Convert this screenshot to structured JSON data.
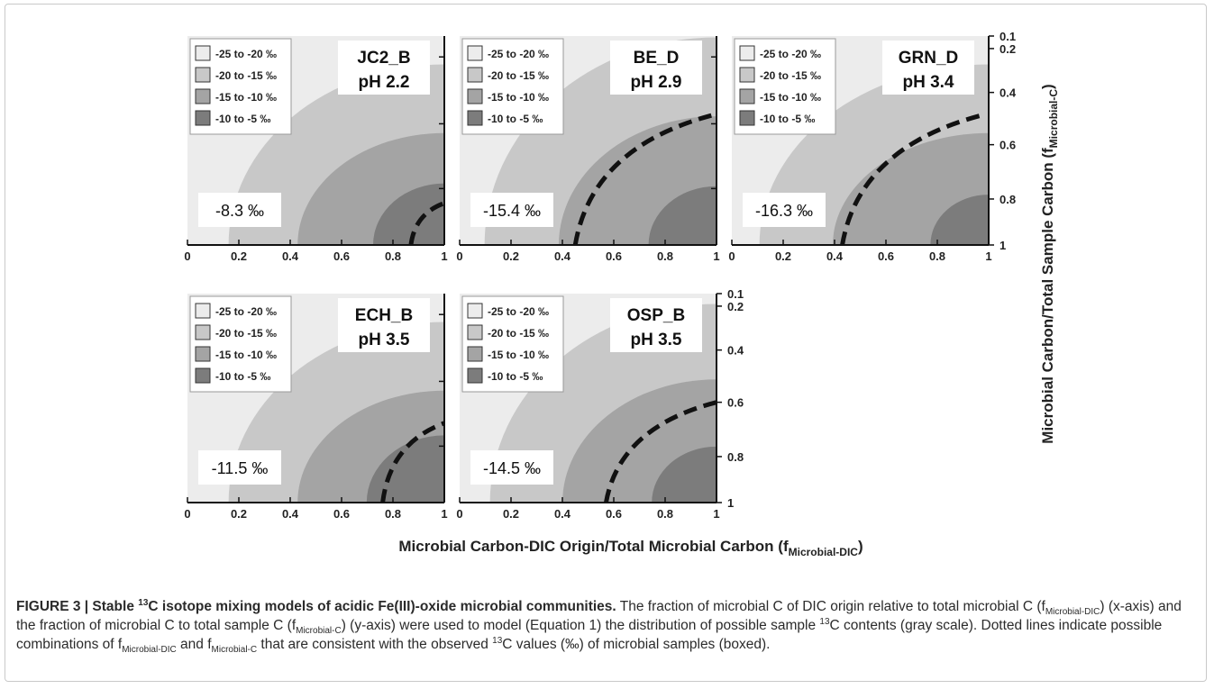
{
  "chart_data": {
    "type": "heatmap",
    "description_layout": "five contour panels sharing a right y-axis",
    "xlabel": {
      "main": "Microbial Carbon-DIC Origin/Total Microbial Carbon (f",
      "sub": "Microbial-DIC",
      "close": ")"
    },
    "ylabel": {
      "main": "Microbial Carbon/Total Sample Carbon (f",
      "sub": "Microbial-C",
      "close": ")"
    },
    "xlim": [
      0,
      1
    ],
    "ylim": [
      0.1,
      1
    ],
    "x_ticks": [
      "0",
      "0.2",
      "0.4",
      "0.6",
      "0.8",
      "1"
    ],
    "y_ticks": [
      "0.1",
      "0.2",
      "0.4",
      "0.6",
      "0.8",
      "1"
    ],
    "legend": [
      {
        "label": "-25 to -20 ‰",
        "color": "#ececec"
      },
      {
        "label": "-20 to -15 ‰",
        "color": "#c8c8c8"
      },
      {
        "label": "-15 to -10 ‰",
        "color": "#a4a4a4"
      },
      {
        "label": "-10 to -5 ‰",
        "color": "#7c7c7c"
      }
    ],
    "panels": [
      {
        "site": "JC2_B",
        "ph": "pH 2.2",
        "observed": "-8.3 ‰",
        "observed_value": -8.3
      },
      {
        "site": "BE_D",
        "ph": "pH 2.9",
        "observed": "-15.4 ‰",
        "observed_value": -15.4
      },
      {
        "site": "GRN_D",
        "ph": "pH 3.4",
        "observed": "-16.3 ‰",
        "observed_value": -16.3
      },
      {
        "site": "ECH_B",
        "ph": "pH 3.5",
        "observed": "-11.5 ‰",
        "observed_value": -11.5
      },
      {
        "site": "OSP_B",
        "ph": "pH 3.5",
        "observed": "-14.5 ‰",
        "observed_value": -14.5
      }
    ]
  },
  "caption": {
    "figure_label": "FIGURE 3 | Stable ",
    "sup13": "13",
    "title_rest": "C isotope mixing models of acidic Fe(III)-oxide microbial communities.",
    "t1": " The fraction of microbial C of DIC origin relative to total microbial C (f",
    "sub1": "Microbial-DIC",
    "t2": ") (x-axis) and the fraction of microbial C to total sample C (f",
    "sub2": "Microbial-C",
    "t3": ") (y-axis) were used to model (Equation 1) the distribution of possible sample ",
    "sup2": "13",
    "t4": "C contents (gray scale). Dotted lines indicate possible combinations of f",
    "sub3": "Microbial-DIC",
    "t5": " and f",
    "sub4": "Microbial-C",
    "t6": " that are consistent with the observed ",
    "sup3": "13",
    "t7": "C values (‰) of microbial samples (boxed)."
  }
}
